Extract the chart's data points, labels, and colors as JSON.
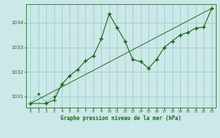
{
  "bg_color": "#cce8e8",
  "grid_color": "#99cccc",
  "line_color": "#1a6b1a",
  "ylim": [
    1030.55,
    1034.75
  ],
  "xlim": [
    -0.5,
    23.5
  ],
  "yticks": [
    1031,
    1032,
    1033,
    1034
  ],
  "xticks": [
    0,
    1,
    2,
    3,
    4,
    5,
    6,
    7,
    8,
    9,
    10,
    11,
    12,
    13,
    14,
    15,
    16,
    17,
    18,
    19,
    20,
    21,
    22,
    23
  ],
  "xlabel": "Graphe pression niveau de la mer (hPa)",
  "series1_x": [
    0,
    1,
    2,
    3,
    4,
    5,
    6,
    7,
    8,
    9,
    10,
    11,
    12,
    13,
    14,
    15,
    16,
    17,
    18,
    19,
    20,
    21,
    22,
    23
  ],
  "series1_y": [
    1030.72,
    1031.1,
    1030.75,
    1031.0,
    1031.5,
    1031.85,
    1032.1,
    1032.45,
    1032.65,
    1033.35,
    1034.35,
    1033.8,
    1033.25,
    1032.5,
    1032.42,
    1032.15,
    1032.5,
    1033.0,
    1033.25,
    1033.5,
    1033.6,
    1033.78,
    1033.82,
    1034.58
  ],
  "series2_x": [
    0,
    2,
    3,
    4,
    5,
    6,
    7,
    8,
    9,
    10,
    11,
    12,
    13,
    14,
    15,
    16,
    17,
    18,
    19,
    20,
    21,
    22,
    23
  ],
  "series2_y": [
    1030.72,
    1030.72,
    1030.85,
    1031.5,
    1031.85,
    1032.1,
    1032.45,
    1032.65,
    1033.35,
    1034.35,
    1033.8,
    1033.25,
    1032.5,
    1032.42,
    1032.15,
    1032.5,
    1033.0,
    1033.25,
    1033.5,
    1033.6,
    1033.78,
    1033.82,
    1034.58
  ],
  "trend_x": [
    0,
    23
  ],
  "trend_y": [
    1030.72,
    1034.58
  ],
  "marker_size": 4,
  "linewidth": 0.8
}
